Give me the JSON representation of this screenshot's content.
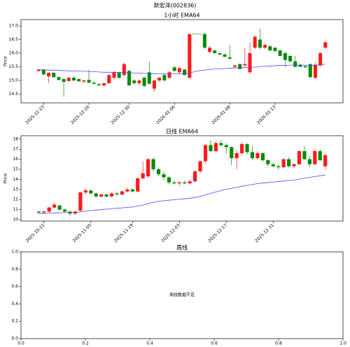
{
  "title": "新宏泽(002836)",
  "chart_data": [
    {
      "type": "candlestick",
      "title": "1小时 EMA64",
      "ylabel": "Price",
      "up_color": "#ff1a1a",
      "down_color": "#0a8a0a",
      "xlim": [
        -3.5,
        60.5
      ],
      "ylim": [
        14.18,
        17.23
      ],
      "yticks": [
        {
          "value": 14.5,
          "label": "14.5"
        },
        {
          "value": 15,
          "label": "15.0"
        },
        {
          "value": 15.5,
          "label": "15.5"
        },
        {
          "value": 16,
          "label": "16.0"
        },
        {
          "value": 16.5,
          "label": "16.5"
        },
        {
          "value": 17,
          "label": "17.0"
        }
      ],
      "xticks": [
        {
          "value": 1,
          "label": "2025-12-23"
        },
        {
          "value": 10,
          "label": "2025-12-26"
        },
        {
          "value": 18,
          "label": "2025-12-30"
        },
        {
          "value": 27,
          "label": "2026-01-06"
        },
        {
          "value": 38,
          "label": "2026-01-08"
        },
        {
          "value": 47,
          "label": "2026-01-13"
        }
      ],
      "open": [
        15.35,
        15.4,
        15.15,
        15.28,
        15.12,
        15.05,
        14.98,
        15.1,
        15.05,
        14.96,
        15.02,
        14.92,
        14.86,
        14.82,
        14.9,
        15.1,
        15.3,
        15.2,
        15.35,
        15.0,
        14.9,
        15.1,
        15.3,
        14.7,
        15.0,
        15.2,
        15.1,
        15.48,
        15.3,
        15.4,
        15.1,
        16.7,
        16.7,
        16.7,
        16.05,
        16.1,
        16.0,
        15.95,
        15.85,
        15.5,
        15.6,
        15.55,
        15.3,
        16.2,
        16.5,
        16.2,
        16.25,
        16.2,
        16.1,
        16.0,
        15.9,
        15.7,
        15.58,
        15.52,
        15.6,
        15.1,
        15.55,
        16.2
      ],
      "high": [
        15.42,
        15.42,
        15.3,
        15.3,
        15.15,
        15.1,
        15.12,
        15.15,
        15.08,
        15.02,
        15.4,
        14.96,
        14.9,
        14.92,
        15.25,
        15.35,
        15.32,
        15.65,
        15.4,
        15.05,
        15.02,
        15.15,
        15.7,
        15.02,
        15.12,
        15.25,
        15.35,
        15.55,
        15.5,
        15.42,
        16.7,
        16.7,
        16.7,
        16.75,
        16.25,
        16.12,
        16.02,
        15.98,
        16.3,
        15.58,
        15.62,
        16.2,
        16.4,
        16.65,
        16.9,
        16.35,
        16.3,
        16.22,
        16.12,
        16.05,
        15.92,
        15.9,
        15.62,
        15.55,
        15.62,
        15.65,
        16.05,
        16.45
      ],
      "low": [
        15.3,
        15.2,
        14.9,
        15.1,
        15.0,
        14.4,
        14.95,
        14.98,
        14.95,
        14.9,
        14.9,
        14.85,
        14.8,
        14.78,
        14.88,
        15.05,
        15.05,
        15.15,
        14.8,
        14.85,
        14.85,
        14.75,
        14.85,
        14.6,
        14.95,
        14.98,
        15.05,
        15.32,
        15.25,
        15.18,
        15.05,
        16.7,
        16.7,
        16.15,
        16.0,
        15.98,
        15.93,
        15.85,
        15.75,
        15.45,
        15.4,
        15.5,
        15.25,
        16.15,
        16.15,
        16.15,
        16.08,
        16.05,
        15.88,
        15.5,
        15.68,
        15.48,
        15.48,
        15.45,
        15.1,
        15.05,
        15.5,
        16.15
      ],
      "close": [
        15.4,
        15.22,
        15.28,
        15.12,
        15.02,
        14.95,
        15.1,
        15.0,
        14.97,
        15.0,
        14.92,
        14.88,
        14.82,
        14.9,
        15.2,
        15.3,
        15.1,
        15.6,
        14.82,
        14.9,
        15.0,
        14.8,
        14.88,
        15.0,
        15.1,
        15.0,
        15.3,
        15.35,
        15.45,
        15.2,
        16.7,
        16.7,
        16.7,
        16.2,
        16.2,
        16.0,
        15.95,
        15.87,
        15.8,
        15.55,
        15.42,
        15.6,
        16.0,
        16.6,
        16.2,
        16.3,
        16.1,
        16.08,
        15.9,
        15.75,
        15.7,
        15.5,
        15.5,
        15.48,
        15.12,
        15.58,
        16.0,
        16.4
      ],
      "series": [
        {
          "color": "#4a4aff",
          "values": [
            15.4,
            15.39,
            15.38,
            15.37,
            15.37,
            15.36,
            15.35,
            15.35,
            15.34,
            15.34,
            15.33,
            15.32,
            15.31,
            15.3,
            15.3,
            15.3,
            15.29,
            15.29,
            15.28,
            15.27,
            15.27,
            15.26,
            15.25,
            15.24,
            15.24,
            15.24,
            15.24,
            15.24,
            15.24,
            15.24,
            15.28,
            15.32,
            15.36,
            15.38,
            15.4,
            15.42,
            15.43,
            15.44,
            15.45,
            15.46,
            15.46,
            15.47,
            15.48,
            15.49,
            15.51,
            15.52,
            15.53,
            15.54,
            15.55,
            15.55,
            15.56,
            15.56,
            15.56,
            15.56,
            15.55,
            15.56,
            15.57,
            15.6
          ]
        }
      ]
    },
    {
      "type": "candlestick",
      "title": "日线 EMA64",
      "ylabel": "Price",
      "up_color": "#ff1a1a",
      "down_color": "#0a8a0a",
      "xlim": [
        -3.4,
        58.4
      ],
      "ylim": [
        9.86,
        18.33
      ],
      "yticks": [
        10,
        11,
        12,
        13,
        14,
        15,
        16,
        17,
        18
      ],
      "xticks": [
        {
          "value": 1,
          "label": "2025-10-22"
        },
        {
          "value": 10,
          "label": "2025-11-05"
        },
        {
          "value": 18,
          "label": "2025-11-19"
        },
        {
          "value": 27,
          "label": "2025-12-03"
        },
        {
          "value": 36,
          "label": "2025-12-17"
        },
        {
          "value": 45,
          "label": "2025-12-31"
        }
      ],
      "open": [
        10.8,
        10.7,
        10.8,
        11.2,
        11.4,
        11.0,
        10.8,
        10.6,
        10.9,
        12.7,
        12.9,
        12.6,
        12.3,
        12.5,
        12.3,
        12.6,
        12.5,
        12.8,
        13.0,
        12.8,
        14.1,
        14.3,
        16.0,
        15.0,
        14.5,
        14.2,
        13.7,
        13.6,
        13.7,
        13.6,
        13.8,
        14.8,
        15.8,
        17.4,
        16.8,
        17.6,
        17.4,
        17.2,
        16.1,
        16.6,
        17.5,
        16.7,
        16.1,
        16.6,
        15.9,
        15.5,
        15.3,
        15.2,
        16.0,
        15.3,
        15.5,
        16.8,
        16.0,
        15.5,
        16.8,
        15.3
      ],
      "high": [
        10.9,
        10.9,
        11.3,
        11.7,
        11.5,
        11.1,
        10.9,
        10.9,
        12.8,
        13.1,
        12.95,
        12.7,
        12.6,
        12.6,
        12.7,
        12.8,
        12.9,
        13.2,
        13.1,
        14.2,
        15.8,
        16.1,
        16.2,
        15.2,
        14.8,
        14.3,
        13.9,
        13.8,
        13.9,
        14.0,
        14.9,
        15.9,
        17.5,
        17.9,
        17.8,
        17.9,
        17.6,
        17.3,
        16.9,
        17.7,
        17.6,
        17.3,
        16.8,
        16.7,
        16.0,
        15.7,
        15.5,
        16.1,
        16.2,
        15.6,
        16.9,
        17.3,
        16.3,
        17.0,
        17.0,
        16.6
      ],
      "low": [
        10.6,
        10.6,
        10.7,
        11.1,
        10.9,
        10.7,
        10.4,
        10.5,
        10.8,
        12.5,
        12.5,
        12.2,
        12.2,
        12.2,
        12.2,
        12.4,
        12.4,
        12.7,
        12.7,
        12.7,
        14.0,
        14.2,
        14.8,
        14.3,
        13.9,
        13.5,
        13.5,
        13.4,
        13.5,
        13.5,
        13.7,
        14.6,
        15.6,
        16.7,
        16.7,
        17.2,
        16.5,
        15.4,
        15.0,
        16.4,
        16.5,
        15.9,
        16.0,
        15.8,
        15.3,
        15.2,
        15.0,
        15.1,
        15.2,
        15.1,
        15.4,
        15.9,
        15.2,
        15.4,
        15.8,
        15.0
      ],
      "close": [
        10.7,
        10.8,
        11.2,
        11.5,
        11.0,
        10.8,
        10.6,
        10.8,
        12.7,
        12.9,
        12.6,
        12.3,
        12.5,
        12.3,
        12.6,
        12.5,
        12.8,
        13.0,
        12.8,
        14.1,
        14.6,
        16.0,
        15.0,
        14.5,
        14.2,
        13.7,
        13.6,
        13.7,
        13.6,
        13.8,
        14.8,
        15.8,
        17.4,
        16.8,
        17.6,
        17.4,
        17.2,
        16.1,
        16.6,
        17.5,
        16.7,
        16.1,
        16.6,
        15.9,
        15.5,
        15.3,
        15.2,
        16.0,
        15.3,
        15.5,
        16.8,
        16.0,
        15.5,
        16.8,
        15.9,
        16.4
      ],
      "series": [
        {
          "color": "#4a4aff",
          "values": [
            10.6,
            10.62,
            10.64,
            10.67,
            10.69,
            10.7,
            10.7,
            10.71,
            10.77,
            10.84,
            10.9,
            10.95,
            11.0,
            11.04,
            11.09,
            11.13,
            11.17,
            11.22,
            11.26,
            11.35,
            11.45,
            11.6,
            11.72,
            11.81,
            11.88,
            11.93,
            11.98,
            12.03,
            12.07,
            12.12,
            12.2,
            12.31,
            12.47,
            12.6,
            12.75,
            12.89,
            13.02,
            13.1,
            13.2,
            13.31,
            13.41,
            13.49,
            13.58,
            13.64,
            13.69,
            13.73,
            13.77,
            13.84,
            13.88,
            13.92,
            14.02,
            14.12,
            14.18,
            14.28,
            14.36,
            14.43
          ]
        }
      ]
    },
    {
      "type": "empty",
      "title": "周线",
      "annotation": "周线数据不足",
      "xlim": [
        0,
        1
      ],
      "ylim": [
        0,
        1
      ],
      "xticks": [
        {
          "value": 0,
          "label": "0.0"
        },
        {
          "value": 0.2,
          "label": "0.2"
        },
        {
          "value": 0.4,
          "label": "0.4"
        },
        {
          "value": 0.6,
          "label": "0.6"
        },
        {
          "value": 0.8,
          "label": "0.8"
        },
        {
          "value": 1,
          "label": "1.0"
        }
      ],
      "yticks": [
        {
          "value": 0,
          "label": "0.0"
        },
        {
          "value": 0.2,
          "label": "0.2"
        },
        {
          "value": 0.4,
          "label": "0.4"
        },
        {
          "value": 0.6,
          "label": "0.6"
        },
        {
          "value": 0.8,
          "label": "0.8"
        },
        {
          "value": 1,
          "label": "1.0"
        }
      ]
    }
  ]
}
